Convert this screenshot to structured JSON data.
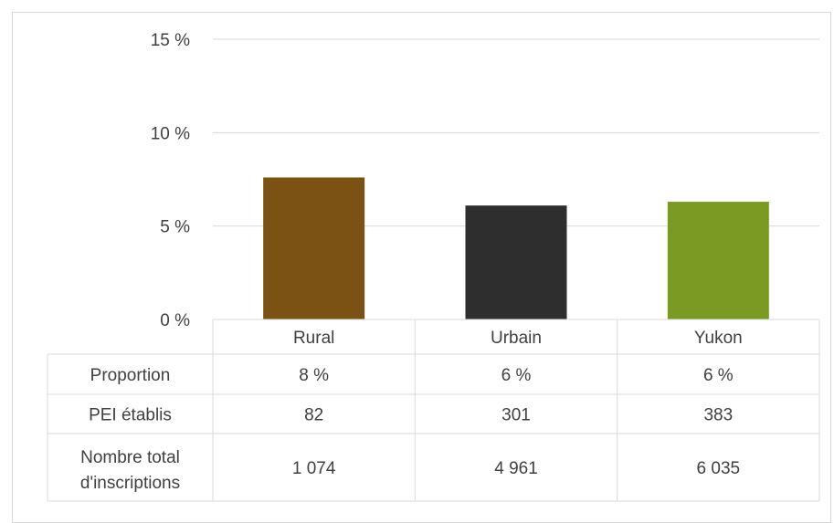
{
  "chart_data": {
    "type": "bar",
    "categories": [
      "Rural",
      "Urbain",
      "Yukon"
    ],
    "values": [
      7.6,
      6.1,
      6.3
    ],
    "ylim": [
      0,
      15
    ],
    "yticks": [
      0,
      5,
      10,
      15
    ],
    "ytick_labels": [
      "0 %",
      "5 %",
      "10 %",
      "15 %"
    ],
    "gridlines": true,
    "legend": "none",
    "colors": [
      "#7b5213",
      "#2e2e2e",
      "#7a9a23"
    ],
    "data_table": {
      "rows": [
        {
          "label": "Proportion",
          "values": [
            "8 %",
            "6 %",
            "6 %"
          ]
        },
        {
          "label": "PEI établis",
          "values": [
            "82",
            "301",
            "383"
          ]
        },
        {
          "label_lines": [
            "Nombre total",
            "d'inscriptions"
          ],
          "values": [
            "1 074",
            "4 961",
            "6 035"
          ]
        }
      ]
    }
  }
}
